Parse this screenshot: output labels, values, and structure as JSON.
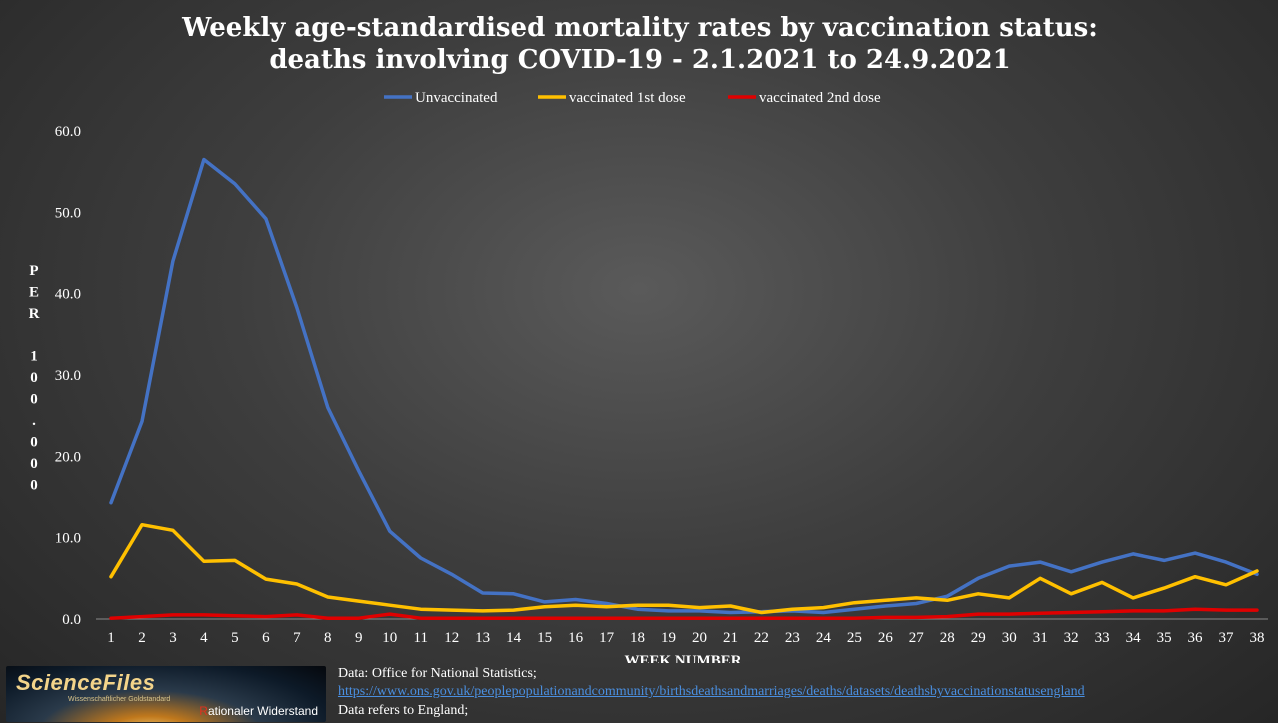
{
  "chart_data": {
    "type": "line",
    "title_lines": [
      "Weekly age-standardised mortality rates by vaccination status:",
      "deaths involving COVID-19 - 2.1.2021 to 24.9.2021"
    ],
    "xlabel": "WEEK NUMBER",
    "ylabel": "PER 100.000",
    "x": [
      1,
      2,
      3,
      4,
      5,
      6,
      7,
      8,
      9,
      10,
      11,
      12,
      13,
      14,
      15,
      16,
      17,
      18,
      19,
      20,
      21,
      22,
      23,
      24,
      25,
      26,
      27,
      28,
      29,
      30,
      31,
      32,
      33,
      34,
      35,
      36,
      37,
      38
    ],
    "x_tick_labels": [
      "1",
      "2",
      "3",
      "4",
      "5",
      "6",
      "7",
      "8",
      "9",
      "10",
      "11",
      "12",
      "13",
      "14",
      "15",
      "16",
      "17",
      "18",
      "19",
      "20",
      "21",
      "22",
      "23",
      "24",
      "25",
      "26",
      "27",
      "28",
      "29",
      "30",
      "31",
      "32",
      "33",
      "34",
      "35",
      "36",
      "37",
      "38"
    ],
    "ylim": [
      0,
      60
    ],
    "y_ticks": [
      0,
      10,
      20,
      30,
      40,
      50,
      60
    ],
    "y_tick_labels": [
      "0.0",
      "10.0",
      "20.0",
      "30.0",
      "40.0",
      "50.0",
      "60.0"
    ],
    "grid": false,
    "legend_position": "top-center",
    "series": [
      {
        "name": "Unvaccinated",
        "color": "#4472c4",
        "values": [
          14.3,
          24.3,
          44.0,
          56.5,
          53.5,
          49.2,
          38.3,
          26.0,
          18.2,
          10.8,
          7.5,
          5.5,
          3.2,
          3.1,
          2.1,
          2.4,
          1.9,
          1.2,
          1.0,
          1.0,
          0.8,
          0.9,
          1.0,
          0.8,
          1.2,
          1.6,
          1.9,
          2.8,
          5.0,
          6.5,
          7.0,
          5.8,
          7.0,
          8.0,
          7.2,
          8.1,
          7.0,
          5.5
        ]
      },
      {
        "name": "vaccinated 1st dose",
        "color": "#ffc000",
        "values": [
          5.2,
          11.6,
          10.9,
          7.1,
          7.2,
          4.9,
          4.3,
          2.7,
          2.2,
          1.7,
          1.2,
          1.1,
          1.0,
          1.1,
          1.5,
          1.7,
          1.5,
          1.7,
          1.7,
          1.4,
          1.6,
          0.8,
          1.2,
          1.4,
          2.0,
          2.3,
          2.6,
          2.3,
          3.1,
          2.6,
          5.0,
          3.1,
          4.5,
          2.6,
          3.8,
          5.2,
          4.2,
          5.9
        ]
      },
      {
        "name": "vaccinated 2nd dose",
        "color": "#e00000",
        "values": [
          0.1,
          0.3,
          0.5,
          0.5,
          0.4,
          0.3,
          0.5,
          0.1,
          0.1,
          0.6,
          0.1,
          0.1,
          0.1,
          0.1,
          0.1,
          0.1,
          0.1,
          0.1,
          0.1,
          0.1,
          0.1,
          0.1,
          0.1,
          0.1,
          0.1,
          0.2,
          0.2,
          0.3,
          0.6,
          0.6,
          0.7,
          0.8,
          0.9,
          1.0,
          1.0,
          1.2,
          1.1,
          1.1
        ]
      }
    ]
  },
  "footer": {
    "logo": {
      "main": "ScienceFiles",
      "sub": "Wissenschaftlicher Goldstandard",
      "tag_first": "R",
      "tag_rest": "ationaler Widerstand"
    },
    "source_line1": "Data: Office for National Statistics;",
    "source_link": "https://www.ons.gov.uk/peoplepopulationandcommunity/birthsdeathsandmarriages/deaths/datasets/deathsbyvaccinationstatusengland",
    "source_line3": "Data refers to England;"
  }
}
